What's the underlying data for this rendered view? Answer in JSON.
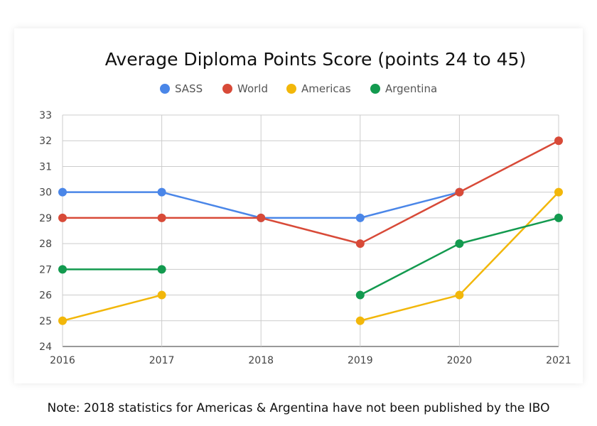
{
  "chart_data": {
    "type": "line",
    "title": "Average Diploma Points Score (points 24 to 45)",
    "categories": [
      "2016",
      "2017",
      "2018",
      "2019",
      "2020",
      "2021"
    ],
    "ylim": [
      24,
      33
    ],
    "yticks": [
      24,
      25,
      26,
      27,
      28,
      29,
      30,
      31,
      32,
      33
    ],
    "grid": true,
    "legend_position": "top",
    "series": [
      {
        "name": "SASS",
        "color": "#4a86e8",
        "values": [
          30,
          30,
          29,
          29,
          30,
          null
        ]
      },
      {
        "name": "World",
        "color": "#d84a38",
        "values": [
          29,
          29,
          29,
          28,
          30,
          32
        ]
      },
      {
        "name": "Americas",
        "color": "#f2b70a",
        "values": [
          25,
          26,
          null,
          25,
          26,
          30
        ]
      },
      {
        "name": "Argentina",
        "color": "#139a4f",
        "values": [
          27,
          27,
          null,
          26,
          28,
          29
        ]
      }
    ]
  },
  "note": "Note: 2018 statistics for Americas & Argentina have not been published by the IBO"
}
